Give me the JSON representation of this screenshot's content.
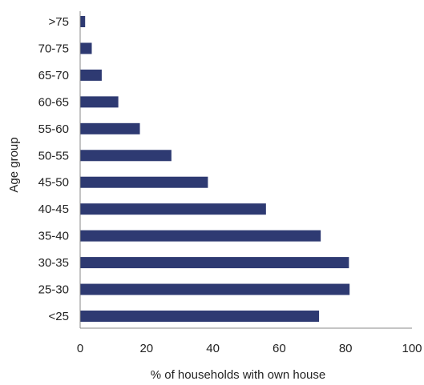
{
  "chart_data": {
    "type": "bar",
    "orientation": "horizontal",
    "categories": [
      ">75",
      "70-75",
      "65-70",
      "60-65",
      "55-60",
      "50-55",
      "45-50",
      "40-45",
      "35-40",
      "30-35",
      "25-30",
      "<25"
    ],
    "values": [
      1.5,
      3.5,
      6.5,
      11.5,
      18,
      27.5,
      38.5,
      56,
      72.5,
      81,
      81.2,
      72
    ],
    "xlabel": "% of households with own house",
    "ylabel": "Age group",
    "xlim": [
      0,
      100
    ],
    "xticks": [
      0,
      20,
      40,
      60,
      80,
      100
    ],
    "xtick_labels": [
      "0",
      "20",
      "40",
      "60",
      "80",
      "100"
    ],
    "grid": false,
    "bar_color": "#2e3a72"
  }
}
